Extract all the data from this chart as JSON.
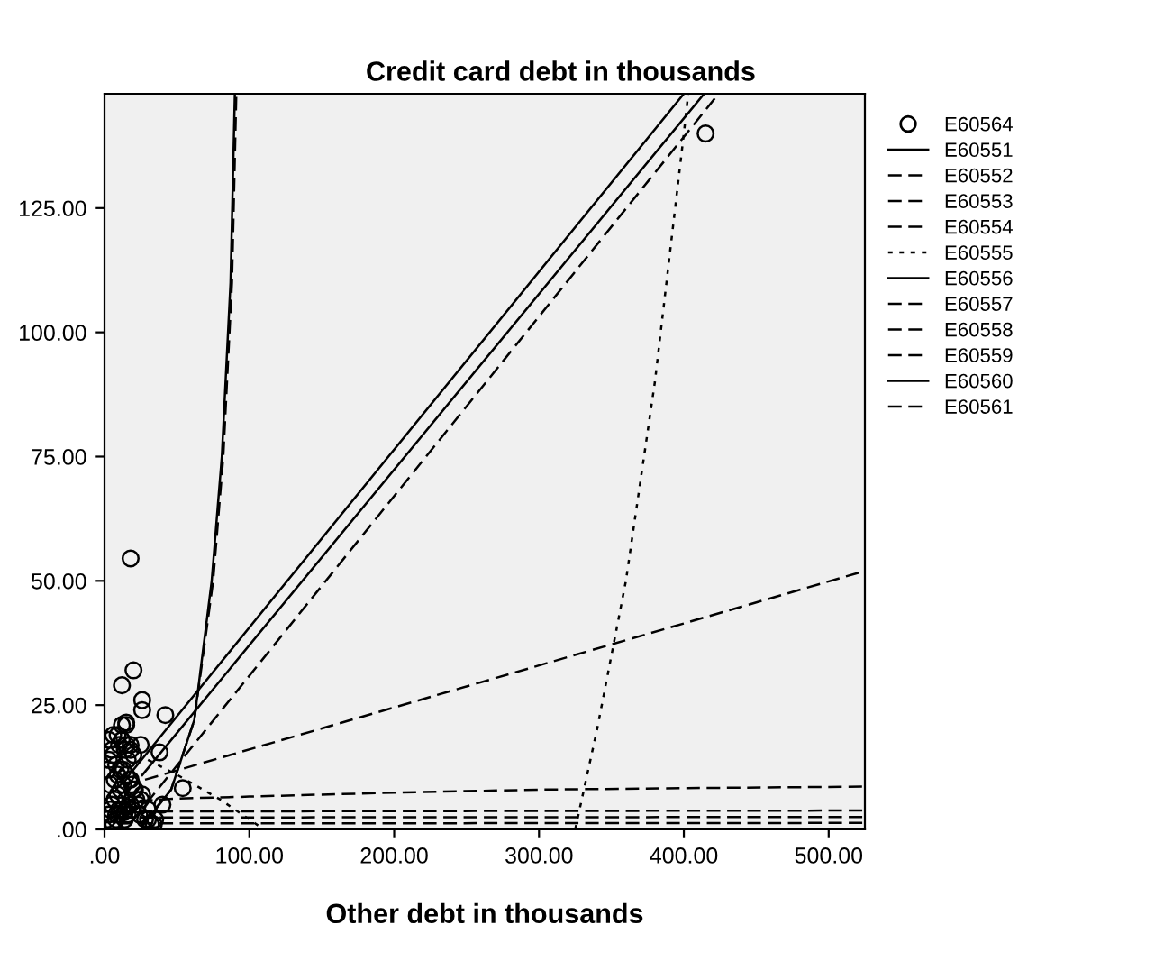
{
  "chart_data": {
    "type": "line",
    "ylabel": "Credit card debt in thousands",
    "xlabel": "Other debt in thousands",
    "xlim": [
      0,
      525
    ],
    "ylim": [
      0,
      148
    ],
    "xticks": [
      {
        "value": 0,
        "label": ".00"
      },
      {
        "value": 100,
        "label": "100.00"
      },
      {
        "value": 200,
        "label": "200.00"
      },
      {
        "value": 300,
        "label": "300.00"
      },
      {
        "value": 400,
        "label": "400.00"
      },
      {
        "value": 500,
        "label": "500.00"
      }
    ],
    "yticks": [
      {
        "value": 0,
        "label": ".00"
      },
      {
        "value": 25,
        "label": "25.00"
      },
      {
        "value": 50,
        "label": "50.00"
      },
      {
        "value": 75,
        "label": "75.00"
      },
      {
        "value": 100,
        "label": "100.00"
      },
      {
        "value": 125,
        "label": "125.00"
      }
    ],
    "grid": false,
    "legend": "right",
    "series": [
      {
        "name": "E60564",
        "type": "scatter",
        "marker": "circle",
        "color": "#000000",
        "x": [
          2,
          3,
          4,
          5,
          6,
          7,
          8,
          9,
          10,
          11,
          12,
          13,
          14,
          15,
          16,
          18,
          19,
          20,
          22,
          24,
          26,
          28,
          30,
          32,
          35,
          2,
          3,
          5,
          6,
          8,
          10,
          12,
          14,
          16,
          18,
          20,
          4,
          7,
          9,
          11,
          13,
          15,
          17,
          19,
          21,
          23,
          25,
          3,
          6,
          9,
          12,
          15,
          18,
          8,
          10,
          14,
          16,
          18,
          12,
          15,
          18,
          20,
          26,
          26,
          42,
          15,
          12,
          25,
          38,
          54,
          40,
          30,
          34,
          415
        ],
        "values": [
          2,
          3,
          4,
          5,
          1,
          6,
          2,
          7,
          3,
          8,
          4,
          9,
          2,
          6,
          3,
          10,
          4,
          8,
          6,
          3,
          7,
          2,
          4,
          1,
          2,
          12,
          14,
          16,
          15,
          13,
          17,
          18,
          16,
          14,
          17,
          15,
          9,
          10,
          11,
          12,
          12,
          11,
          10,
          9,
          8,
          5,
          6,
          18,
          19,
          19,
          18,
          17,
          16,
          3,
          4,
          3.5,
          4.5,
          5,
          29,
          21.5,
          54.5,
          32,
          26,
          24,
          23,
          21,
          21,
          17,
          15.5,
          8.3,
          5,
          2,
          1,
          140
        ]
      },
      {
        "name": "E60551",
        "line_style": "solid",
        "color": "#000000",
        "x": [
          26,
          414
        ],
        "values": [
          10.9,
          148
        ]
      },
      {
        "name": "E60552",
        "line_style": "dashed",
        "color": "#000000",
        "x": [
          10,
          50,
          100,
          200,
          300,
          400,
          525
        ],
        "values": [
          5.5,
          6.2,
          6.6,
          7.4,
          8,
          8.3,
          8.6
        ]
      },
      {
        "name": "E60553",
        "line_style": "dashed",
        "color": "#000000",
        "x": [
          26,
          46,
          62,
          75,
          82,
          88,
          91
        ],
        "values": [
          1,
          8,
          22,
          50,
          75,
          110,
          148
        ]
      },
      {
        "name": "E60554",
        "line_style": "dashed",
        "color": "#000000",
        "x": [
          20,
          424
        ],
        "values": [
          2,
          148
        ]
      },
      {
        "name": "E60555",
        "line_style": "dotted",
        "color": "#000000",
        "x": [
          30,
          50,
          80,
          110,
          200,
          325,
          340,
          360,
          380,
          400,
          403
        ],
        "values": [
          14,
          11,
          6,
          0,
          null,
          0,
          20,
          50,
          90,
          140,
          148
        ]
      },
      {
        "name": "E60556",
        "line_style": "solid",
        "color": "#000000",
        "x": [
          27,
          46,
          62,
          74,
          81,
          87,
          90
        ],
        "values": [
          1,
          8,
          22,
          50,
          75,
          110,
          148
        ]
      },
      {
        "name": "E60557",
        "line_style": "dashed",
        "color": "#000000",
        "x": [
          28,
          525
        ],
        "values": [
          10,
          52
        ]
      },
      {
        "name": "E60558",
        "line_style": "dashed",
        "color": "#000000",
        "x": [
          10,
          525
        ],
        "values": [
          3.6,
          3.8
        ]
      },
      {
        "name": "E60559",
        "line_style": "dashed",
        "color": "#000000",
        "x": [
          10,
          525
        ],
        "values": [
          2.4,
          2.5
        ]
      },
      {
        "name": "E60560",
        "line_style": "solid",
        "color": "#000000",
        "x": [
          20,
          400
        ],
        "values": [
          12,
          148
        ]
      },
      {
        "name": "E60561",
        "line_style": "dashed",
        "color": "#000000",
        "x": [
          10,
          525
        ],
        "values": [
          1.2,
          1.3
        ]
      }
    ]
  }
}
